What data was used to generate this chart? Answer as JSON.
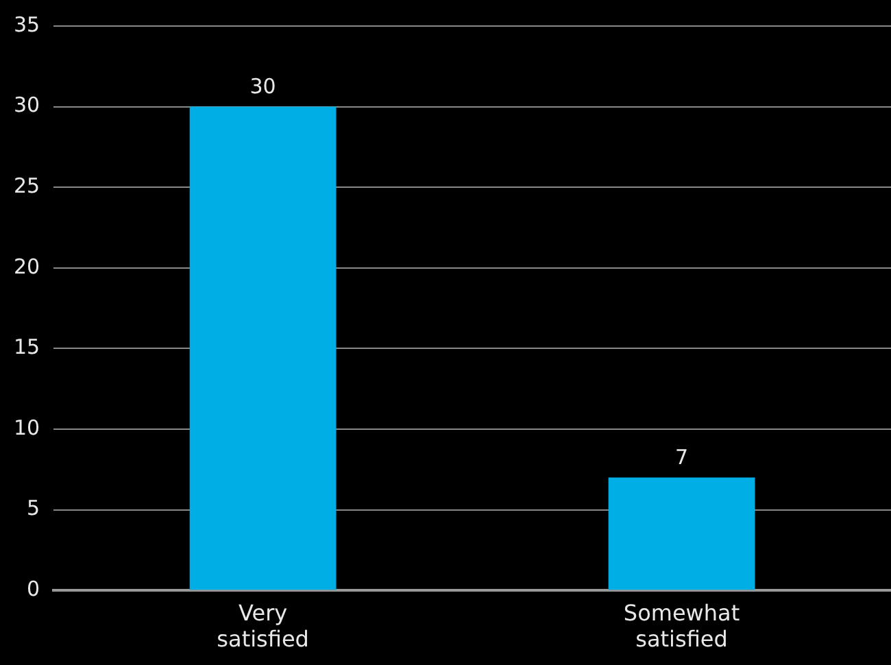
{
  "chart_data": {
    "type": "bar",
    "categories": [
      "Very satisfied",
      "Somewhat satisfied"
    ],
    "values": [
      30,
      7
    ],
    "color": "#00aee6",
    "ylim": [
      0,
      35
    ],
    "yticks": [
      0,
      5,
      10,
      15,
      20,
      25,
      30,
      35
    ],
    "grid": "y",
    "data_labels": true,
    "legend": false
  }
}
